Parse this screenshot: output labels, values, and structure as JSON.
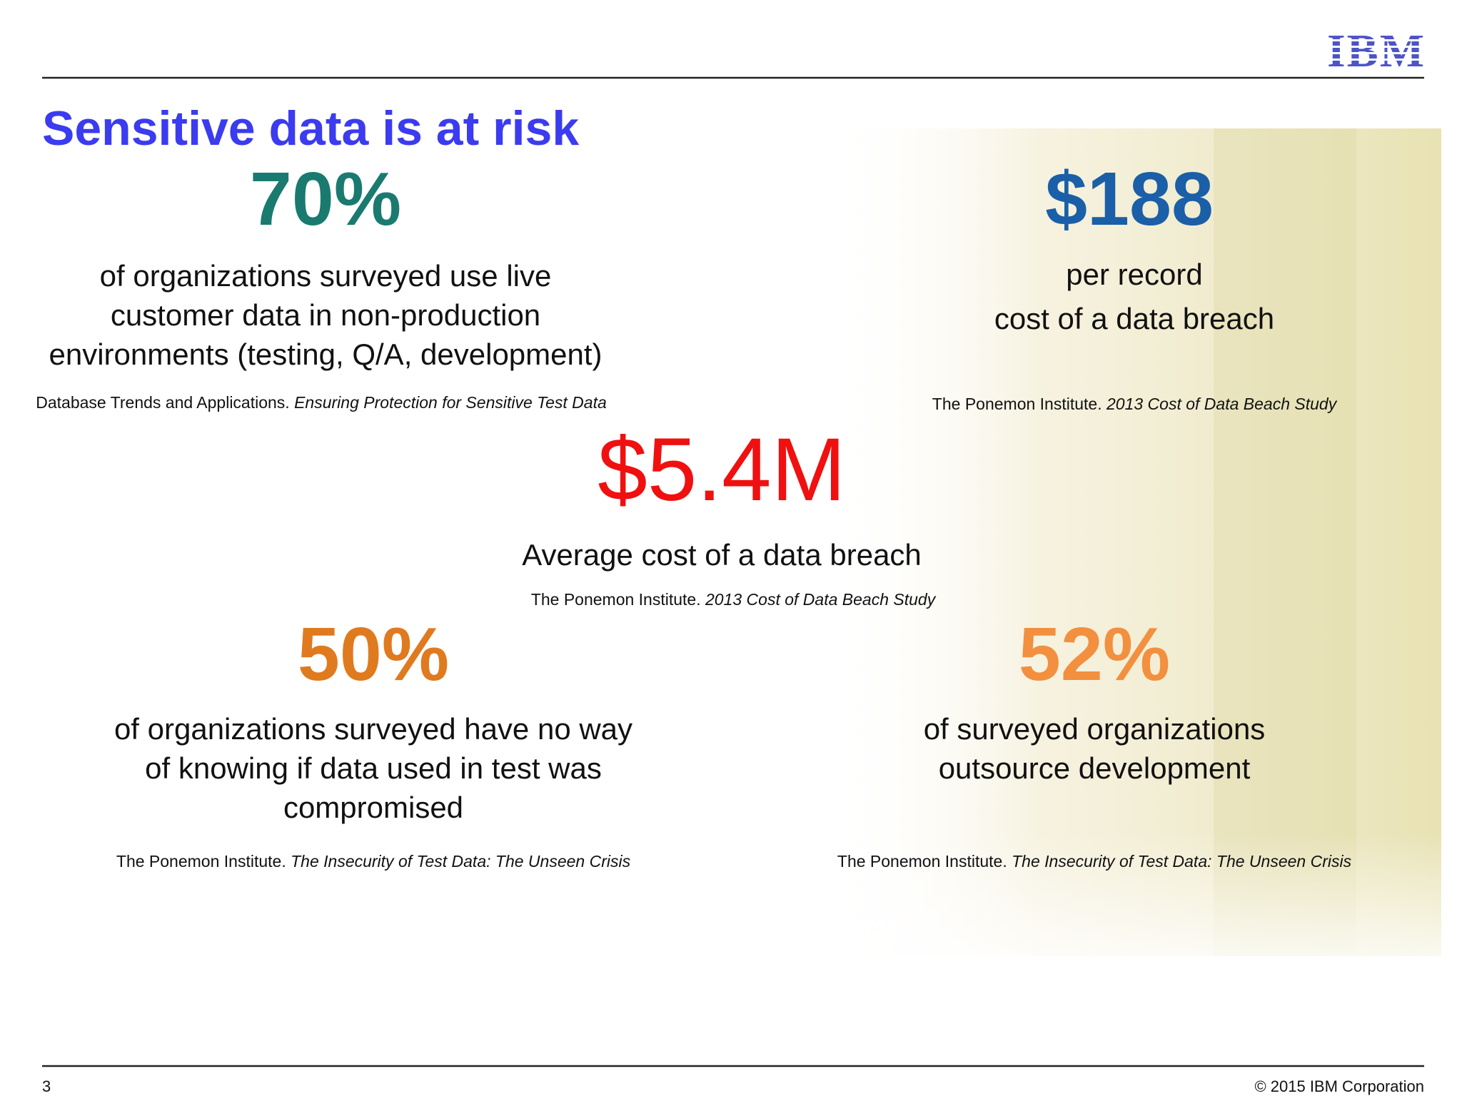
{
  "header": {
    "logo": "IBM"
  },
  "title": "Sensitive data is at risk",
  "stats": [
    {
      "value": "70%",
      "lines": [
        "of organizations surveyed use live",
        "customer data in non-production",
        "environments (testing, Q/A, development)"
      ],
      "source": {
        "publisher": "Database Trends and Applications. ",
        "title": "Ensuring Protection for Sensitive Test Data"
      }
    },
    {
      "value": "$188",
      "lines": [
        "per record",
        "cost of a data breach"
      ],
      "source": {
        "publisher": "The Ponemon Institute. ",
        "title": "2013 Cost of Data Beach Study"
      }
    },
    {
      "value": "$5.4M",
      "lines": [
        "Average cost of a data breach"
      ],
      "source": {
        "publisher": "The Ponemon Institute. ",
        "title": "2013 Cost of Data Beach Study"
      }
    },
    {
      "value": "50%",
      "lines": [
        "of organizations surveyed have no way",
        "of knowing if data used in test was",
        "compromised"
      ],
      "source": {
        "publisher": "The Ponemon Institute. ",
        "title": "The Insecurity of Test Data: The Unseen Crisis"
      }
    },
    {
      "value": "52%",
      "lines": [
        "of surveyed organizations",
        "outsource development"
      ],
      "source": {
        "publisher": "The Ponemon Institute. ",
        "title": "The Insecurity of Test Data: The Unseen Crisis"
      }
    }
  ],
  "footer": {
    "page": "3",
    "copyright": "© 2015 IBM Corporation"
  }
}
